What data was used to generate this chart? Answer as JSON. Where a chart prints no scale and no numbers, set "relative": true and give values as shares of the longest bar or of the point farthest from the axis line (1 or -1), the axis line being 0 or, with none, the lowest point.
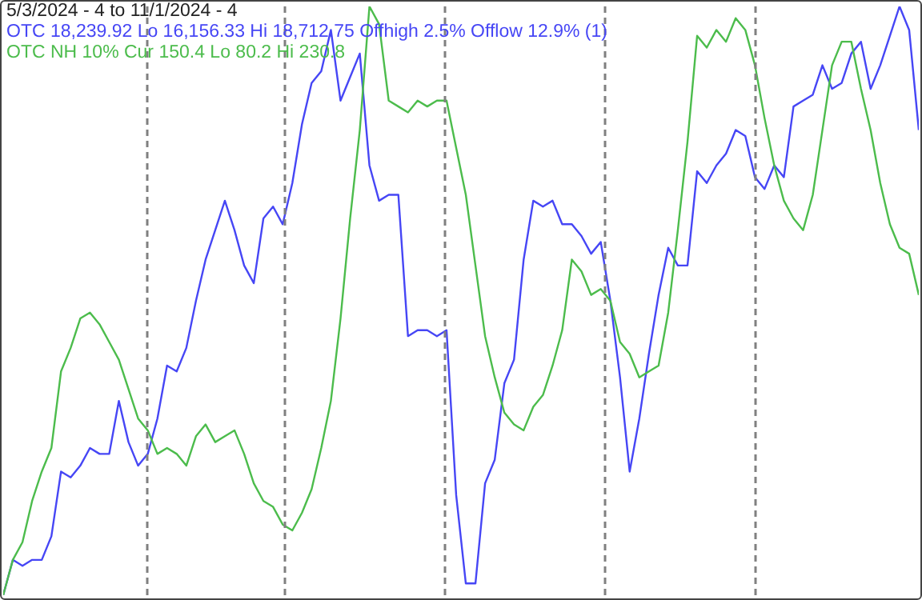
{
  "chart_data": {
    "type": "line",
    "title": "5/3/2024 - 4 to 11/1/2024 - 4",
    "relative": true,
    "categories": [
      null,
      null,
      null,
      null,
      null,
      null,
      null,
      null,
      null,
      null,
      null,
      null,
      null,
      null,
      null,
      null,
      null,
      null,
      null,
      null,
      null,
      null,
      null,
      null,
      null,
      null,
      null,
      null,
      null,
      null,
      null,
      null,
      null,
      null,
      null,
      null,
      null,
      null,
      null,
      null,
      null,
      null,
      null,
      null,
      null,
      null,
      null,
      null,
      null,
      null,
      null,
      null,
      null,
      null,
      null,
      null,
      null,
      null,
      null,
      null,
      null,
      null,
      null,
      null,
      null,
      null,
      null,
      null,
      null,
      null,
      null,
      null,
      null,
      null,
      null,
      null,
      null,
      null,
      null,
      null,
      null,
      null,
      null,
      null,
      null,
      null,
      null,
      null,
      null,
      null,
      null,
      null,
      null,
      null,
      null,
      null
    ],
    "series": [
      {
        "name": "OTC 18,239.92 Lo 16,156.33 Hi 18,712.75 Offhigh 2.5% Offlow 12.9% (1)",
        "color": "#4646f5",
        "values": [
          0.0,
          0.06,
          0.05,
          0.06,
          0.06,
          0.1,
          0.21,
          0.2,
          0.22,
          0.25,
          0.24,
          0.24,
          0.33,
          0.26,
          0.22,
          0.24,
          0.3,
          0.39,
          0.38,
          0.42,
          0.5,
          0.57,
          0.62,
          0.67,
          0.62,
          0.56,
          0.53,
          0.64,
          0.66,
          0.63,
          0.7,
          0.8,
          0.87,
          0.89,
          0.96,
          0.84,
          0.88,
          0.92,
          0.73,
          0.67,
          0.68,
          0.68,
          0.44,
          0.45,
          0.45,
          0.44,
          0.45,
          0.17,
          0.02,
          0.02,
          0.19,
          0.23,
          0.36,
          0.4,
          0.57,
          0.67,
          0.66,
          0.67,
          0.63,
          0.63,
          0.61,
          0.58,
          0.6,
          0.5,
          0.37,
          0.21,
          0.3,
          0.41,
          0.51,
          0.59,
          0.56,
          0.56,
          0.72,
          0.7,
          0.73,
          0.75,
          0.79,
          0.78,
          0.71,
          0.69,
          0.73,
          0.71,
          0.83,
          0.84,
          0.85,
          0.9,
          0.86,
          0.87,
          0.92,
          0.94,
          0.86,
          0.9,
          0.95,
          1.0,
          0.96,
          0.79
        ]
      },
      {
        "name": "OTC NH 10% Cur 150.4 Lo 80.2 Hi 230.8",
        "color": "#4cbc4c",
        "values": [
          0.0,
          0.06,
          0.09,
          0.16,
          0.21,
          0.25,
          0.38,
          0.42,
          0.47,
          0.48,
          0.46,
          0.43,
          0.4,
          0.35,
          0.3,
          0.28,
          0.24,
          0.25,
          0.24,
          0.22,
          0.27,
          0.29,
          0.26,
          0.27,
          0.28,
          0.24,
          0.19,
          0.16,
          0.15,
          0.12,
          0.11,
          0.14,
          0.18,
          0.25,
          0.33,
          0.47,
          0.64,
          0.79,
          1.0,
          0.97,
          0.84,
          0.83,
          0.82,
          0.84,
          0.83,
          0.84,
          0.84,
          0.76,
          0.68,
          0.56,
          0.44,
          0.37,
          0.31,
          0.29,
          0.28,
          0.32,
          0.34,
          0.39,
          0.45,
          0.57,
          0.55,
          0.51,
          0.52,
          0.5,
          0.43,
          0.41,
          0.37,
          0.38,
          0.39,
          0.48,
          0.62,
          0.77,
          0.95,
          0.93,
          0.96,
          0.94,
          0.98,
          0.96,
          0.9,
          0.81,
          0.73,
          0.67,
          0.64,
          0.62,
          0.68,
          0.79,
          0.9,
          0.94,
          0.94,
          0.86,
          0.79,
          0.7,
          0.63,
          0.59,
          0.58,
          0.51
        ]
      }
    ],
    "legend": "top left",
    "marker": "none",
    "line_style": "solid",
    "grid": false
  }
}
